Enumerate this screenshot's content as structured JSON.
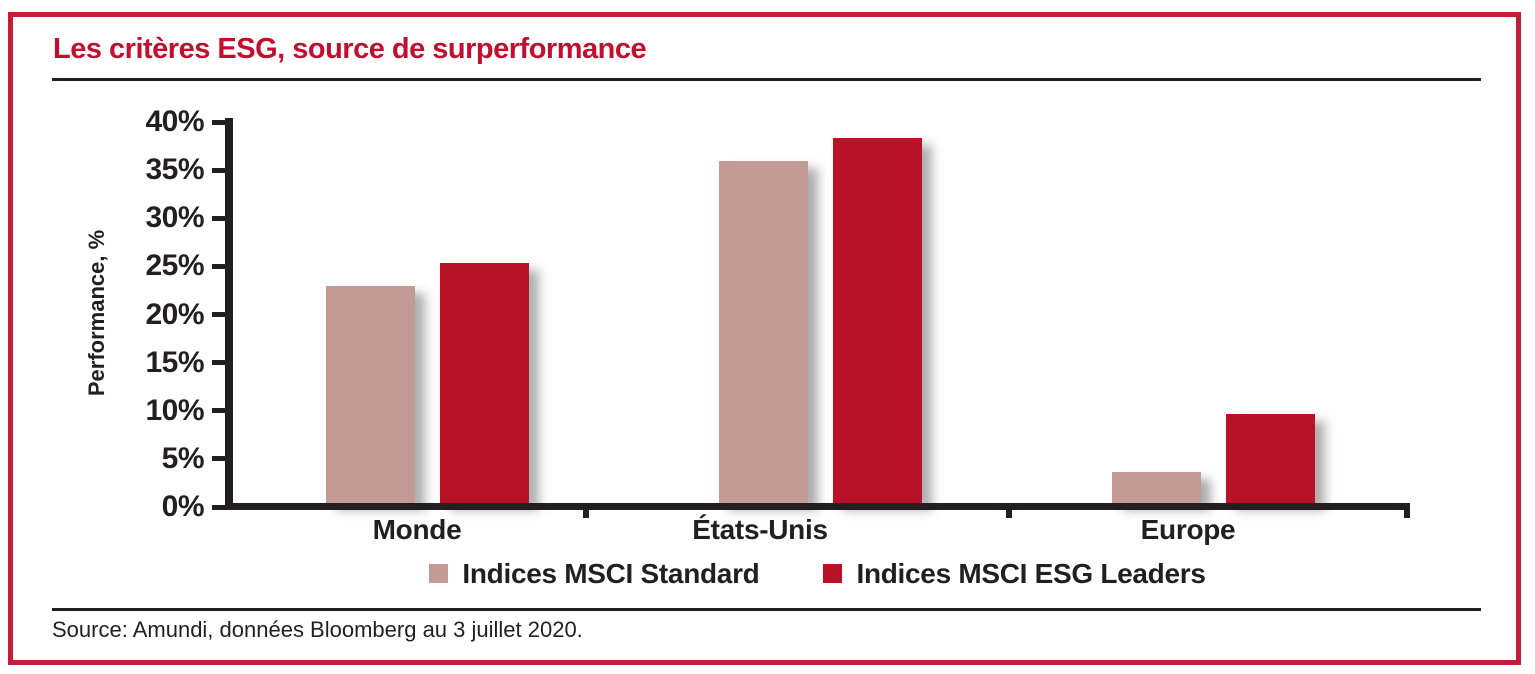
{
  "title": "Les critères ESG, source de surperformance",
  "source": "Source: Amundi, données Bloomberg au 3 juillet 2020.",
  "colors": {
    "frame_border": "#C41D38",
    "title_red": "#C20F30",
    "text_dark": "#231F20",
    "series_standard": "#C49A95",
    "series_esg_leaders": "#B91126"
  },
  "chart_data": {
    "type": "bar",
    "title": "Les critères ESG, source de surperformance",
    "categories": [
      "Monde",
      "États-Unis",
      "Europe"
    ],
    "series": [
      {
        "name": "Indices MSCI Standard",
        "color": "#C49A95",
        "values": [
          23.0,
          36.0,
          3.6
        ]
      },
      {
        "name": "Indices MSCI ESG Leaders",
        "color": "#B91126",
        "values": [
          25.4,
          38.3,
          9.7
        ]
      }
    ],
    "xlabel": "",
    "ylabel": "Performance, %",
    "ylim": [
      0,
      40
    ],
    "ytick_step": 5,
    "ytick_suffix": "%",
    "grid": false,
    "legend_position": "bottom"
  }
}
